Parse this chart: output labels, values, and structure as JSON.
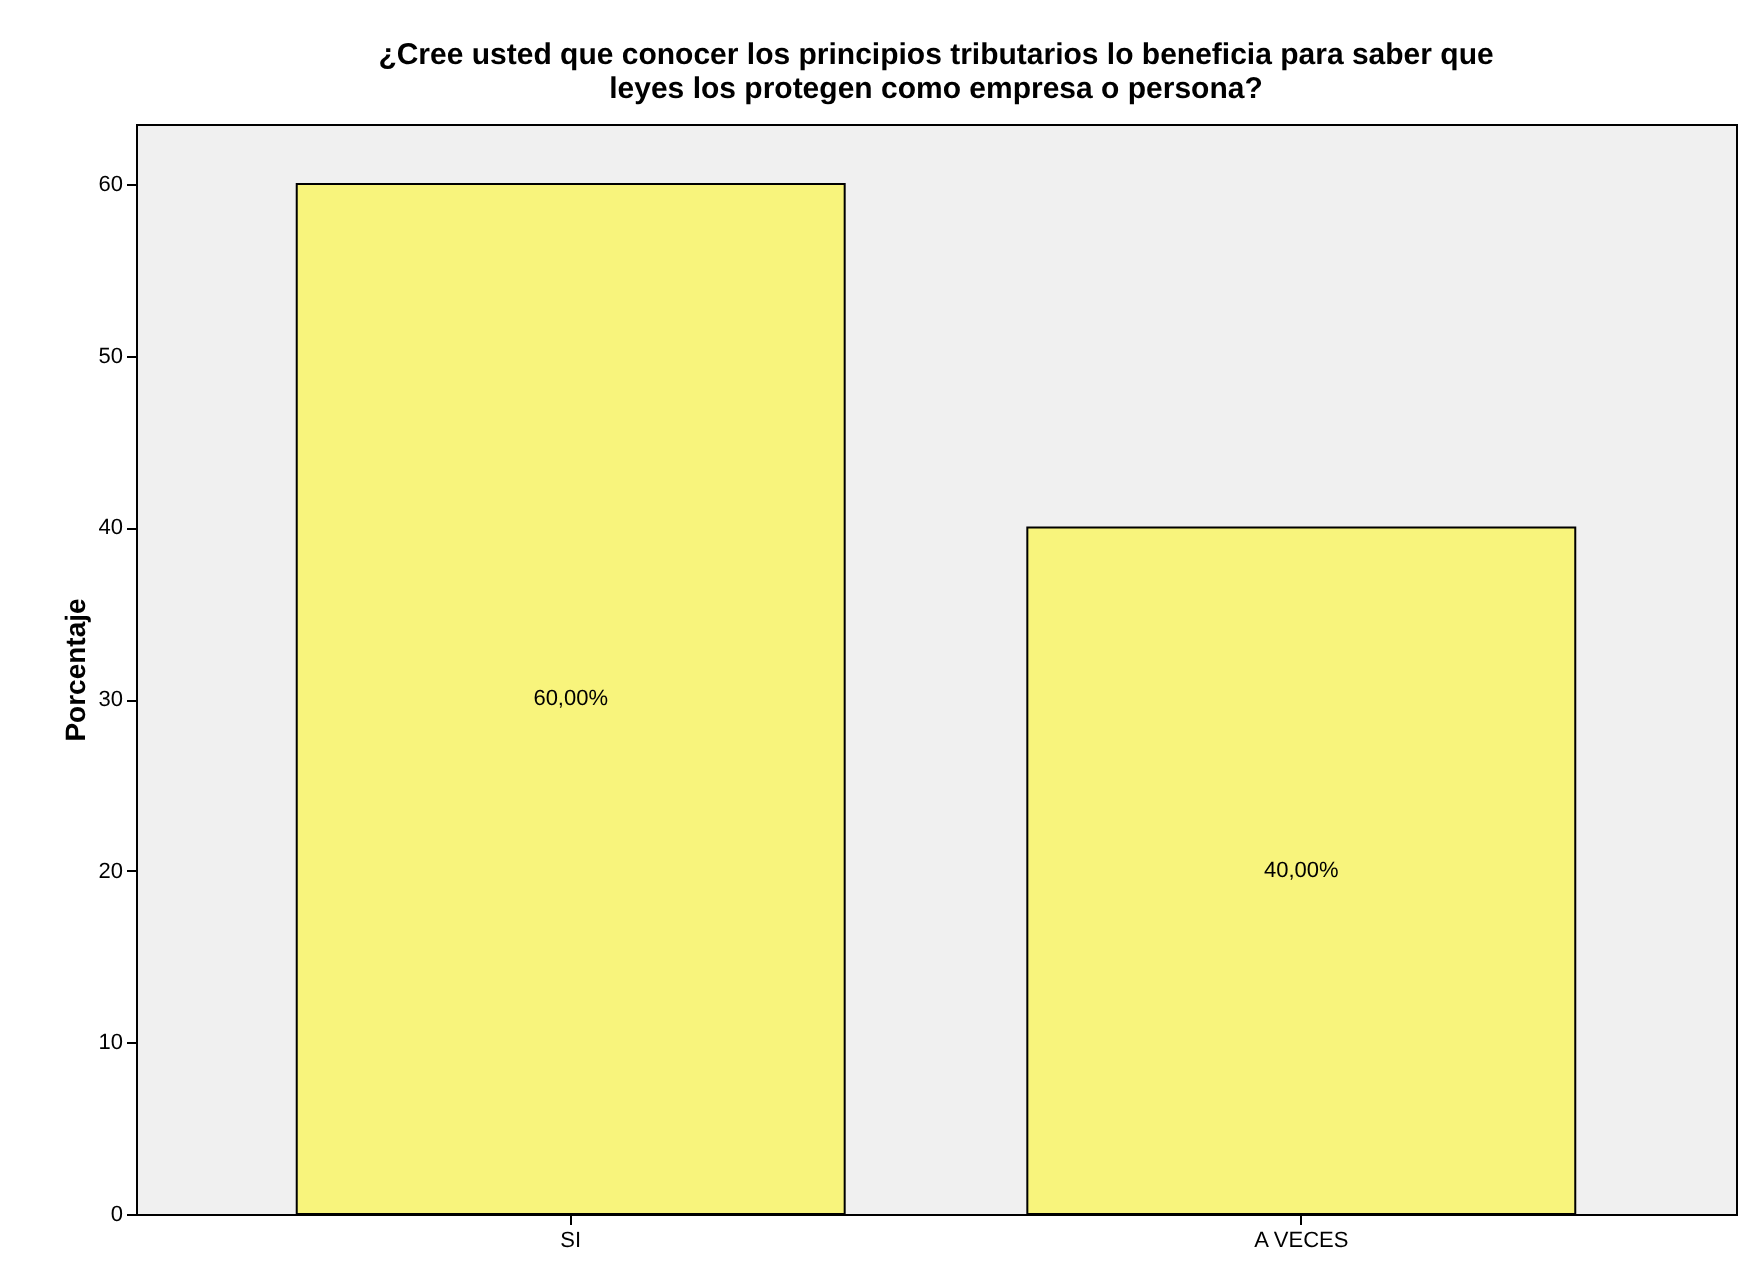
{
  "chart_data": {
    "type": "bar",
    "title": [
      "¿Cree usted que conocer los principios tributarios lo beneficia para saber que",
      "leyes los protegen como empresa o persona?"
    ],
    "ylabel": "Porcentaje",
    "categories": [
      "SI",
      "A VECES"
    ],
    "values": [
      60,
      40
    ],
    "color": "#f8f47c",
    "value_labels": [
      "60,00%",
      "40,00%"
    ],
    "ylim": [
      0,
      63.5
    ],
    "yticks": [
      0,
      10,
      20,
      30,
      40,
      50,
      60
    ],
    "grid": false
  }
}
